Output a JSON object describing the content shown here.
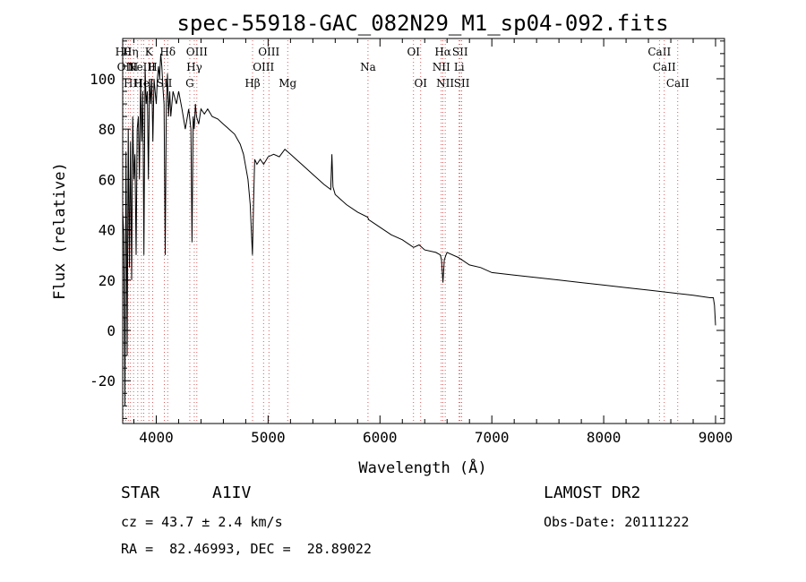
{
  "chart_data": {
    "type": "line",
    "title": "spec-55918-GAC_082N29_M1_sp04-092.fits",
    "xlabel": "Wavelength (Å)",
    "ylabel": "Flux (relative)",
    "xlim": [
      3700,
      9080
    ],
    "ylim": [
      -37,
      116
    ],
    "xticks": [
      4000,
      5000,
      6000,
      7000,
      8000,
      9000
    ],
    "yticks": [
      -20,
      0,
      20,
      40,
      60,
      80,
      100
    ],
    "grid": false,
    "legend": "none",
    "series": [
      {
        "x": [
          3700,
          3710,
          3720,
          3730,
          3740,
          3750,
          3760,
          3770,
          3780,
          3790,
          3800,
          3810,
          3820,
          3830,
          3840,
          3850,
          3860,
          3870,
          3880,
          3890,
          3900,
          3910,
          3920,
          3930,
          3940,
          3950,
          3960,
          3970,
          3980,
          3990,
          4000,
          4010,
          4020,
          4030,
          4040,
          4050,
          4060,
          4070,
          4080,
          4090,
          4100,
          4110,
          4120,
          4130,
          4150,
          4180,
          4200,
          4230,
          4260,
          4290,
          4310,
          4320,
          4330,
          4340,
          4350,
          4360,
          4380,
          4400,
          4430,
          4460,
          4500,
          4550,
          4600,
          4650,
          4700,
          4750,
          4780,
          4800,
          4820,
          4840,
          4850,
          4860,
          4870,
          4880,
          4900,
          4930,
          4960,
          5000,
          5050,
          5100,
          5150,
          5200,
          5250,
          5300,
          5400,
          5500,
          5560,
          5570,
          5580,
          5600,
          5700,
          5800,
          5890,
          5900,
          6000,
          6100,
          6200,
          6300,
          6350,
          6400,
          6500,
          6540,
          6550,
          6563,
          6575,
          6590,
          6600,
          6700,
          6800,
          6900,
          7000,
          7200,
          7400,
          7600,
          7800,
          8000,
          8200,
          8400,
          8600,
          8800,
          8950,
          8980,
          8990,
          9000
        ],
        "y": [
          47,
          38,
          -30,
          71,
          -10,
          80,
          25,
          75,
          20,
          85,
          60,
          70,
          30,
          80,
          85,
          60,
          100,
          75,
          95,
          30,
          105,
          90,
          95,
          60,
          100,
          90,
          100,
          75,
          100,
          95,
          90,
          100,
          105,
          100,
          110,
          105,
          96,
          90,
          30,
          90,
          102,
          85,
          95,
          85,
          95,
          90,
          95,
          88,
          80,
          88,
          80,
          35,
          85,
          80,
          90,
          85,
          82,
          88,
          86,
          88,
          85,
          84,
          82,
          80,
          78,
          74,
          70,
          65,
          60,
          50,
          40,
          30,
          50,
          68,
          66,
          68,
          66,
          69,
          70,
          69,
          72,
          70,
          68,
          66,
          62,
          58,
          56,
          70,
          57,
          54,
          50,
          47,
          45,
          44,
          41,
          38,
          36,
          33,
          34,
          32,
          31,
          30,
          28,
          19,
          28,
          30,
          31,
          29,
          26,
          25,
          23,
          22,
          21,
          20,
          19,
          18,
          17,
          16,
          15,
          14,
          13,
          13,
          10,
          2
        ]
      }
    ],
    "line_markers": [
      {
        "wl": 3704,
        "label": "Hθ",
        "row": 1
      },
      {
        "wl": 3726,
        "label": "OII",
        "row": 2
      },
      {
        "wl": 3750,
        "label": "H",
        "row": 3
      },
      {
        "wl": 3770,
        "label": "Hη",
        "row": 1
      },
      {
        "wl": 3797,
        "label": "H",
        "row": 2
      },
      {
        "wl": 3835,
        "label": "H",
        "row": 3
      },
      {
        "wl": 3868,
        "label": "NeIII",
        "row": 2
      },
      {
        "wl": 3889,
        "label": "HeI",
        "row": 3
      },
      {
        "wl": 3934,
        "label": "K",
        "row": 1
      },
      {
        "wl": 3968,
        "label": "H",
        "row": 2
      },
      {
        "wl": 4072,
        "label": "SII",
        "row": 3
      },
      {
        "wl": 4102,
        "label": "Hδ",
        "row": 1
      },
      {
        "wl": 4300,
        "label": "G",
        "row": 3
      },
      {
        "wl": 4340,
        "label": "Hγ",
        "row": 2
      },
      {
        "wl": 4363,
        "label": "OIII",
        "row": 1
      },
      {
        "wl": 4861,
        "label": "Hβ",
        "row": 3
      },
      {
        "wl": 4959,
        "label": "OIII",
        "row": 2
      },
      {
        "wl": 5007,
        "label": "OIII",
        "row": 1
      },
      {
        "wl": 5175,
        "label": "Mg",
        "row": 3
      },
      {
        "wl": 5893,
        "label": "Na",
        "row": 2
      },
      {
        "wl": 6300,
        "label": "OI",
        "row": 1
      },
      {
        "wl": 6364,
        "label": "OI",
        "row": 3
      },
      {
        "wl": 6548,
        "label": "NII",
        "row": 2
      },
      {
        "wl": 6563,
        "label": "Hα",
        "row": 1
      },
      {
        "wl": 6583,
        "label": "NII",
        "row": 3
      },
      {
        "wl": 6708,
        "label": "Li",
        "row": 2
      },
      {
        "wl": 6716,
        "label": "SII",
        "row": 1
      },
      {
        "wl": 6731,
        "label": "SII",
        "row": 3
      },
      {
        "wl": 8498,
        "label": "CaII",
        "row": 1
      },
      {
        "wl": 8542,
        "label": "CaII",
        "row": 2
      },
      {
        "wl": 8662,
        "label": "CaII",
        "row": 3
      }
    ]
  },
  "info": {
    "class_label": "STAR",
    "subclass": "A1IV",
    "survey": "LAMOST DR2",
    "cz": "cz = 43.7 ± 2.4 km/s",
    "obs_date": "Obs-Date: 20111222",
    "coords": "RA =  82.46993, DEC =  28.89022"
  }
}
